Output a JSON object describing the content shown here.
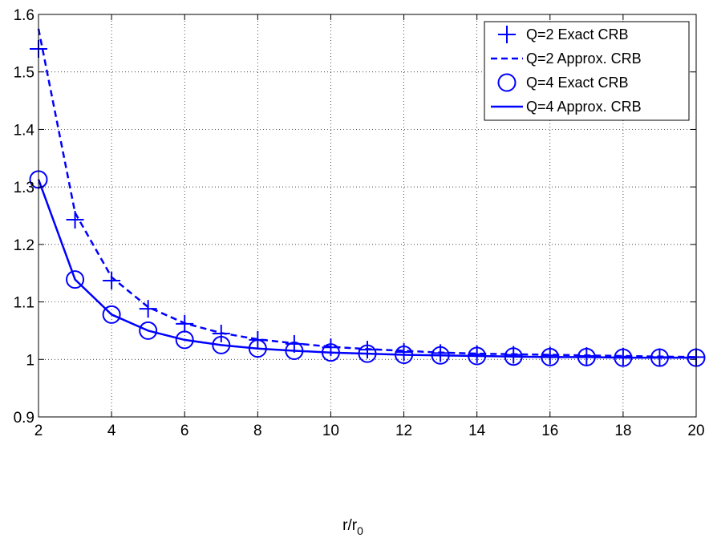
{
  "chart_data": {
    "type": "line",
    "xlabel": "r/r",
    "xlabel_sub": "0",
    "xlim": [
      2,
      20
    ],
    "ylim": [
      0.9,
      1.6
    ],
    "xticks": [
      2,
      4,
      6,
      8,
      10,
      12,
      14,
      16,
      18,
      20
    ],
    "yticks": [
      0.9,
      1,
      1.1,
      1.2,
      1.3,
      1.4,
      1.5,
      1.6
    ],
    "ytick_labels": [
      "0.9",
      "1",
      "1.1",
      "1.2",
      "1.3",
      "1.4",
      "1.5",
      "1.6"
    ],
    "grid": true,
    "legend_position": "top-right",
    "color": "#0000ff",
    "x": [
      2,
      3,
      4,
      5,
      6,
      7,
      8,
      9,
      10,
      11,
      12,
      13,
      14,
      15,
      16,
      17,
      18,
      19,
      20
    ],
    "series": [
      {
        "name": "Q=2 Exact CRB",
        "style": "marker-plus",
        "values": [
          1.54,
          1.243,
          1.137,
          1.088,
          1.062,
          1.045,
          1.034,
          1.027,
          1.021,
          1.017,
          1.013,
          1.011,
          1.009,
          1.008,
          1.007,
          1.006,
          1.005,
          1.004,
          1.004
        ]
      },
      {
        "name": "Q=2 Approx. CRB",
        "style": "dashed",
        "values": [
          1.575,
          1.255,
          1.143,
          1.091,
          1.063,
          1.046,
          1.035,
          1.028,
          1.022,
          1.018,
          1.015,
          1.012,
          1.01,
          1.009,
          1.008,
          1.007,
          1.006,
          1.005,
          1.004
        ]
      },
      {
        "name": "Q=4 Exact CRB",
        "style": "marker-circle",
        "values": [
          1.313,
          1.139,
          1.078,
          1.05,
          1.034,
          1.025,
          1.019,
          1.015,
          1.012,
          1.01,
          1.008,
          1.007,
          1.006,
          1.005,
          1.004,
          1.004,
          1.003,
          1.003,
          1.003
        ]
      },
      {
        "name": "Q=4 Approx. CRB",
        "style": "solid",
        "values": [
          1.313,
          1.139,
          1.078,
          1.05,
          1.034,
          1.025,
          1.019,
          1.015,
          1.012,
          1.01,
          1.008,
          1.007,
          1.006,
          1.005,
          1.004,
          1.004,
          1.003,
          1.003,
          1.003
        ]
      }
    ]
  }
}
